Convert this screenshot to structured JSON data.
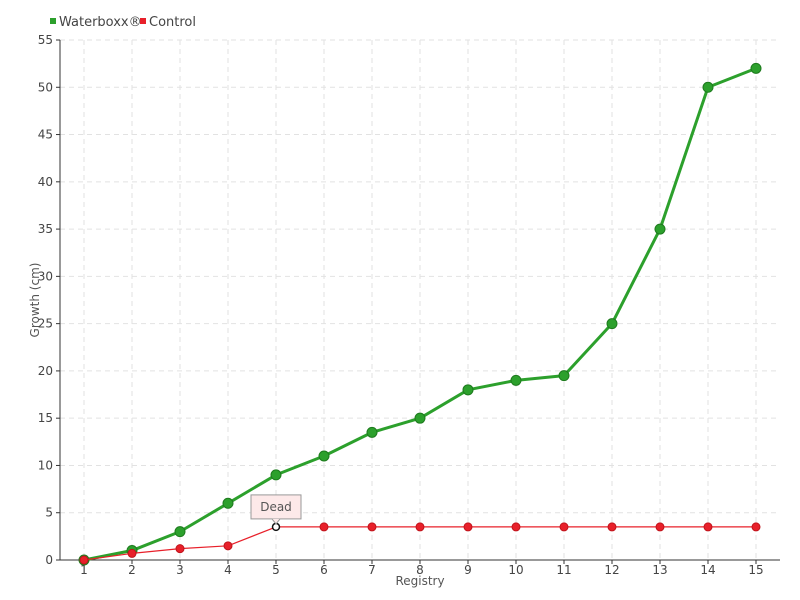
{
  "chart_data": {
    "type": "line",
    "xlabel": "Registry",
    "ylabel": "Growth (cm)",
    "categories": [
      1,
      2,
      3,
      4,
      5,
      6,
      7,
      8,
      9,
      10,
      11,
      12,
      13,
      14,
      15
    ],
    "ylim": [
      0,
      55
    ],
    "yticks": [
      0,
      5,
      10,
      15,
      20,
      25,
      30,
      35,
      40,
      45,
      50,
      55
    ],
    "grid": true,
    "legend_position": "top-left",
    "series": [
      {
        "name": "Waterboxx®",
        "color": "#2ca02c",
        "values": [
          0,
          1,
          3,
          6,
          9,
          11,
          13.5,
          15,
          18,
          19,
          19.5,
          25,
          35,
          50,
          52
        ]
      },
      {
        "name": "Control",
        "color": "#e8202a",
        "values": [
          0,
          0.7,
          1.2,
          1.5,
          3.5,
          3.5,
          3.5,
          3.5,
          3.5,
          3.5,
          3.5,
          3.5,
          3.5,
          3.5,
          3.5
        ]
      }
    ],
    "annotation": {
      "text": "Dead",
      "x": 5,
      "y": 3.5,
      "series": "Control"
    }
  }
}
